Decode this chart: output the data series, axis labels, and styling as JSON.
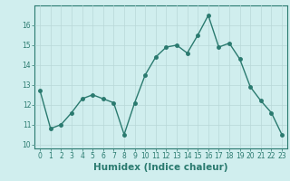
{
  "x": [
    0,
    1,
    2,
    3,
    4,
    5,
    6,
    7,
    8,
    9,
    10,
    11,
    12,
    13,
    14,
    15,
    16,
    17,
    18,
    19,
    20,
    21,
    22,
    23
  ],
  "y": [
    12.7,
    10.8,
    11.0,
    11.6,
    12.3,
    12.5,
    12.3,
    12.1,
    10.5,
    12.1,
    13.5,
    14.4,
    14.9,
    15.0,
    14.6,
    15.5,
    16.5,
    14.9,
    15.1,
    14.3,
    12.9,
    12.2,
    11.6,
    10.5
  ],
  "line_color": "#2a7a6f",
  "marker_color": "#2a7a6f",
  "bg_color": "#d0eeee",
  "grid_color": "#b8d8d8",
  "axis_color": "#2a7a6f",
  "xlabel": "Humidex (Indice chaleur)",
  "ylim": [
    9.8,
    17.0
  ],
  "xlim": [
    -0.5,
    23.5
  ],
  "yticks": [
    10,
    11,
    12,
    13,
    14,
    15,
    16
  ],
  "xticks": [
    0,
    1,
    2,
    3,
    4,
    5,
    6,
    7,
    8,
    9,
    10,
    11,
    12,
    13,
    14,
    15,
    16,
    17,
    18,
    19,
    20,
    21,
    22,
    23
  ],
  "tick_label_fontsize": 5.5,
  "xlabel_fontsize": 7.5,
  "linewidth": 1.0,
  "markersize": 2.5
}
